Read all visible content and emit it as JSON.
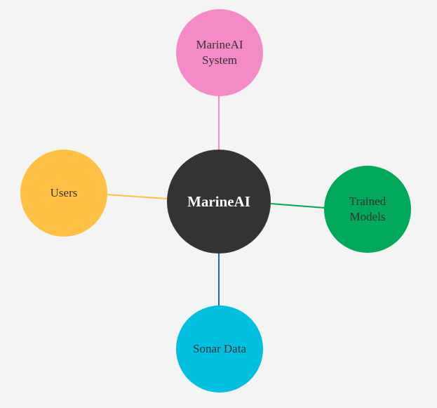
{
  "diagram": {
    "center": {
      "label": "MarineAI",
      "color": "#333333"
    },
    "nodes": {
      "top": {
        "label": "MarineAI\nSystem",
        "color": "#f48ac8",
        "line_color": "#f48ac8"
      },
      "left": {
        "label": "Users",
        "color": "#ffc043",
        "line_color": "#ffc043"
      },
      "right": {
        "label": "Trained\nModels",
        "color": "#00a85a",
        "line_color": "#00a85a"
      },
      "bottom": {
        "label": "Sonar Data",
        "color": "#00bfdf",
        "line_color": "#1f6ba8"
      }
    }
  }
}
